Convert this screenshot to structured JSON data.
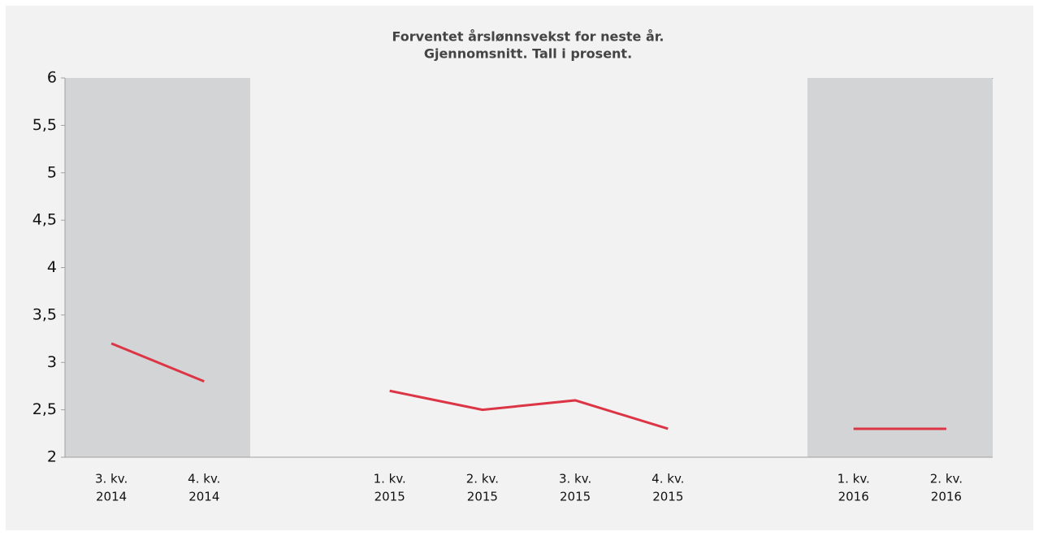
{
  "chart_data": {
    "type": "line",
    "title": [
      "Forventet årslønnsvekst for neste år.",
      "Gjennomsnitt. Tall i prosent."
    ],
    "categories": [
      [
        "3. kv.",
        "2014"
      ],
      [
        "4. kv.",
        "2014"
      ],
      null,
      [
        "1. kv.",
        "2015"
      ],
      [
        "2. kv.",
        "2015"
      ],
      [
        "3. kv.",
        "2015"
      ],
      [
        "4. kv.",
        "2015"
      ],
      null,
      [
        "1. kv.",
        "2016"
      ],
      [
        "2. kv.",
        "2016"
      ]
    ],
    "series": [
      {
        "color": "#dc3545",
        "values": [
          3.2,
          2.8,
          null,
          2.7,
          2.5,
          2.6,
          2.3,
          null,
          2.3,
          2.3
        ]
      }
    ],
    "ylim": [
      2,
      6
    ],
    "yticks": [
      2,
      {
        "value": 2.5,
        "label": "2,5"
      },
      3,
      {
        "value": 3.5,
        "label": "3,5"
      },
      4,
      {
        "value": 4.5,
        "label": "4,5"
      },
      5,
      {
        "value": 5.5,
        "label": "5,5"
      },
      6
    ]
  }
}
